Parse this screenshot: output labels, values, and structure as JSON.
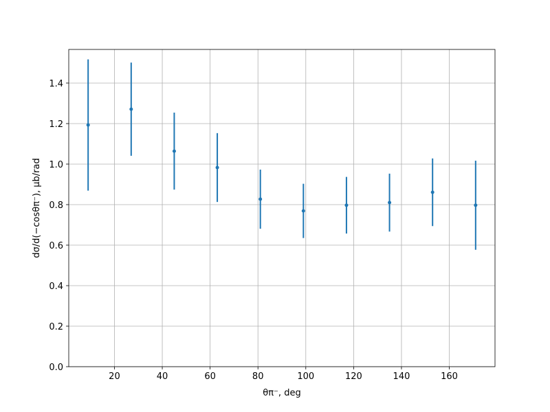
{
  "chart_data": {
    "type": "errorbar",
    "xlabel": "θπ⁻, deg",
    "ylabel": "dσ/d(−cosθπ⁻), μb/rad",
    "x": [
      9,
      27,
      45,
      63,
      81,
      99,
      117,
      135,
      153,
      171
    ],
    "series": [
      {
        "color": "#1f77b4",
        "values": [
          1.193,
          1.271,
          1.064,
          0.983,
          0.827,
          0.769,
          0.797,
          0.81,
          0.861,
          0.797
        ],
        "errors": [
          0.324,
          0.23,
          0.19,
          0.17,
          0.146,
          0.134,
          0.14,
          0.143,
          0.167,
          0.22
        ]
      }
    ],
    "xlim": [
      0.9,
      179.1
    ],
    "ylim": [
      0,
      1.566
    ],
    "xticks": [
      20,
      40,
      60,
      80,
      100,
      120,
      140,
      160
    ],
    "yticks": [
      {
        "value": 0,
        "label": "0.0"
      },
      {
        "value": 0.2,
        "label": "0.2"
      },
      {
        "value": 0.4,
        "label": "0.4"
      },
      {
        "value": 0.6,
        "label": "0.6"
      },
      {
        "value": 0.8,
        "label": "0.8"
      },
      {
        "value": 1.0,
        "label": "1.0"
      },
      {
        "value": 1.2,
        "label": "1.2"
      },
      {
        "value": 1.4,
        "label": "1.4"
      }
    ],
    "grid": true
  }
}
